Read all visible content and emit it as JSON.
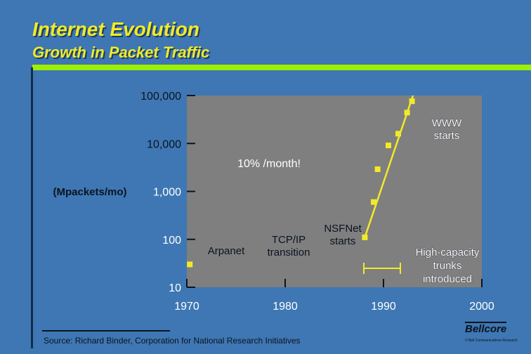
{
  "title": "Internet Evolution",
  "subtitle": "Growth in Packet Traffic",
  "source": "Source: Richard Binder, Corporation for National Research Initiatives",
  "logo": {
    "name": "Bellcore",
    "tagline": "Bell Communications Research"
  },
  "colors": {
    "background": "#3e77b3",
    "plot_area": "#7f7f7f",
    "accent": "#f2ea28",
    "rule": "#9ef000"
  },
  "chart_data": {
    "type": "scatter",
    "title": "Internet Evolution",
    "subtitle": "Growth in Packet Traffic",
    "ylabel": "(Mpackets/mo)",
    "xlabel": "",
    "yscale": "log",
    "ylim": [
      10,
      100000
    ],
    "xlim": [
      1970,
      2000
    ],
    "x_ticks": [
      "1970",
      "1980",
      "1990",
      "2000"
    ],
    "y_ticks": [
      "10",
      "100",
      "1,000",
      "10,000",
      "100,000"
    ],
    "grid": false,
    "series": [
      {
        "points": [
          {
            "x": 1970.3,
            "y": 30
          },
          {
            "x": 1988.1,
            "y": 110
          },
          {
            "x": 1989.0,
            "y": 600
          },
          {
            "x": 1989.4,
            "y": 2900
          },
          {
            "x": 1990.5,
            "y": 9100
          },
          {
            "x": 1991.5,
            "y": 16000
          },
          {
            "x": 1992.4,
            "y": 44000
          },
          {
            "x": 1992.9,
            "y": 76000
          }
        ]
      }
    ],
    "trend_line": {
      "x": [
        1988.1,
        1993.0
      ],
      "y": [
        110,
        100000
      ]
    },
    "annotations": [
      {
        "id": "growth",
        "text": "10% /month!",
        "dark": false
      },
      {
        "id": "arpanet",
        "text": "Arpanet",
        "dark": true
      },
      {
        "id": "tcpip",
        "lines": [
          "TCP/IP",
          "transition"
        ],
        "dark": true
      },
      {
        "id": "nsfnet",
        "lines": [
          "NSFNet",
          "starts"
        ],
        "dark": true
      },
      {
        "id": "www",
        "lines": [
          "WWW",
          "starts"
        ],
        "dark": false
      },
      {
        "id": "highcap",
        "lines": [
          "High-capacity",
          "trunks",
          "introduced"
        ],
        "dark": false
      }
    ]
  }
}
